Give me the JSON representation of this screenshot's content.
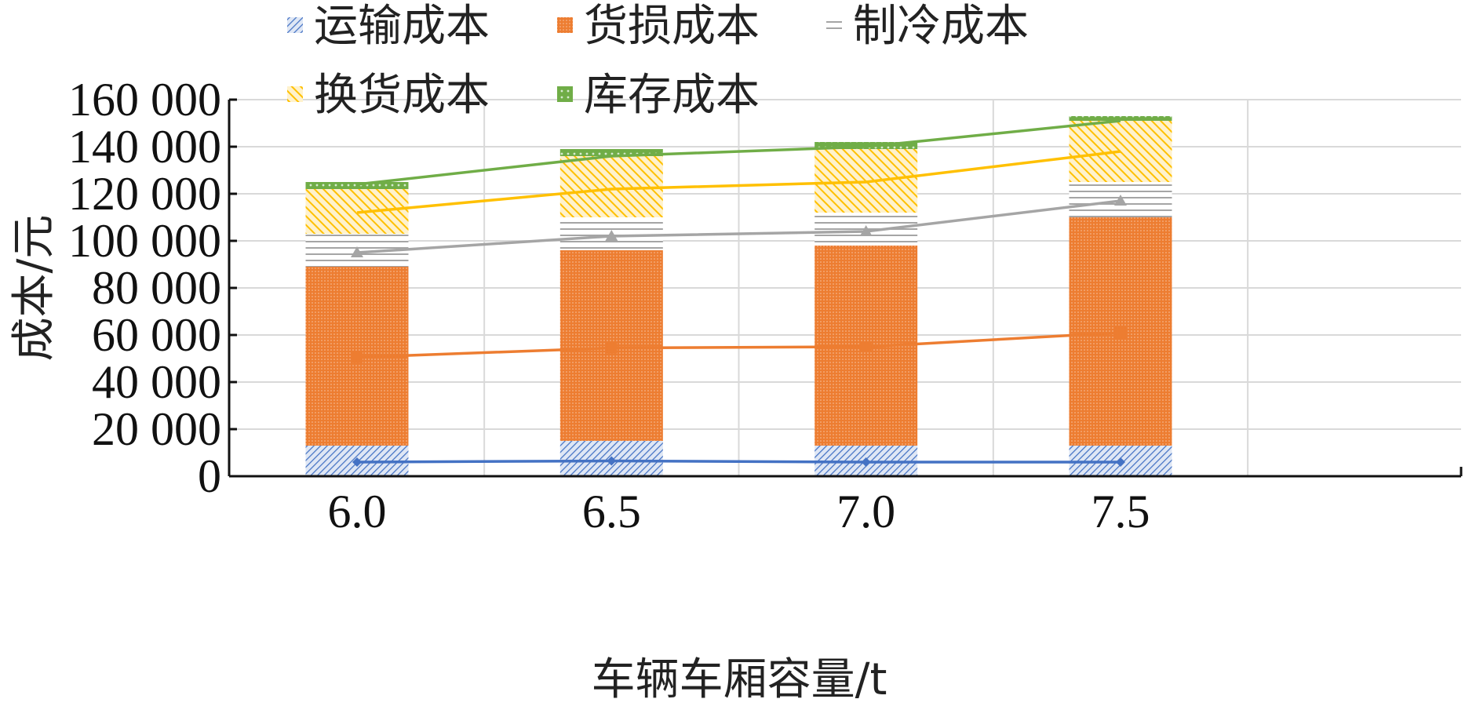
{
  "chart_data": {
    "type": "bar",
    "stacked": true,
    "xlabel": "车辆车厢容量/t",
    "ylabel": "成本/元",
    "categories": [
      "6.0",
      "6.5",
      "7.0",
      "7.5"
    ],
    "ylim": [
      0,
      160000
    ],
    "yticks": [
      0,
      20000,
      40000,
      60000,
      80000,
      100000,
      120000,
      140000,
      160000
    ],
    "ytick_labels": [
      "0",
      "20 000",
      "40 000",
      "60 000",
      "80 000",
      "100 000",
      "120 000",
      "140 000",
      "160 000"
    ],
    "grid": true,
    "legend_position": "top",
    "series": [
      {
        "name": "运输成本",
        "color": "#4472c4",
        "values": [
          13000,
          15000,
          13000,
          13000
        ]
      },
      {
        "name": "货损成本",
        "color": "#ed7d31",
        "values": [
          76000,
          81000,
          85000,
          97000
        ]
      },
      {
        "name": "制冷成本",
        "color": "#a5a5a5",
        "values": [
          14000,
          14000,
          14000,
          15000
        ]
      },
      {
        "name": "换货成本",
        "color": "#ffc000",
        "values": [
          19000,
          26000,
          27000,
          26000
        ]
      },
      {
        "name": "库存成本",
        "color": "#70ad47",
        "values": [
          3000,
          3000,
          3000,
          2000
        ]
      }
    ],
    "lines": [
      {
        "series": "运输成本",
        "color": "#4472c4",
        "marker": "diamond",
        "values": [
          6000,
          6500,
          6000,
          6000
        ]
      },
      {
        "series": "货损成本",
        "color": "#ed7d31",
        "marker": "square",
        "values": [
          50500,
          54500,
          55000,
          61000
        ]
      },
      {
        "series": "制冷成本",
        "color": "#a5a5a5",
        "marker": "triangle",
        "values": [
          95000,
          102000,
          104000,
          117000
        ]
      },
      {
        "series": "换货成本",
        "color": "#ffc000",
        "marker": "none",
        "values": [
          112000,
          122000,
          125000,
          138000
        ]
      },
      {
        "series": "库存成本",
        "color": "#70ad47",
        "marker": "none",
        "values": [
          124000,
          136000,
          140000,
          151000
        ]
      }
    ]
  }
}
